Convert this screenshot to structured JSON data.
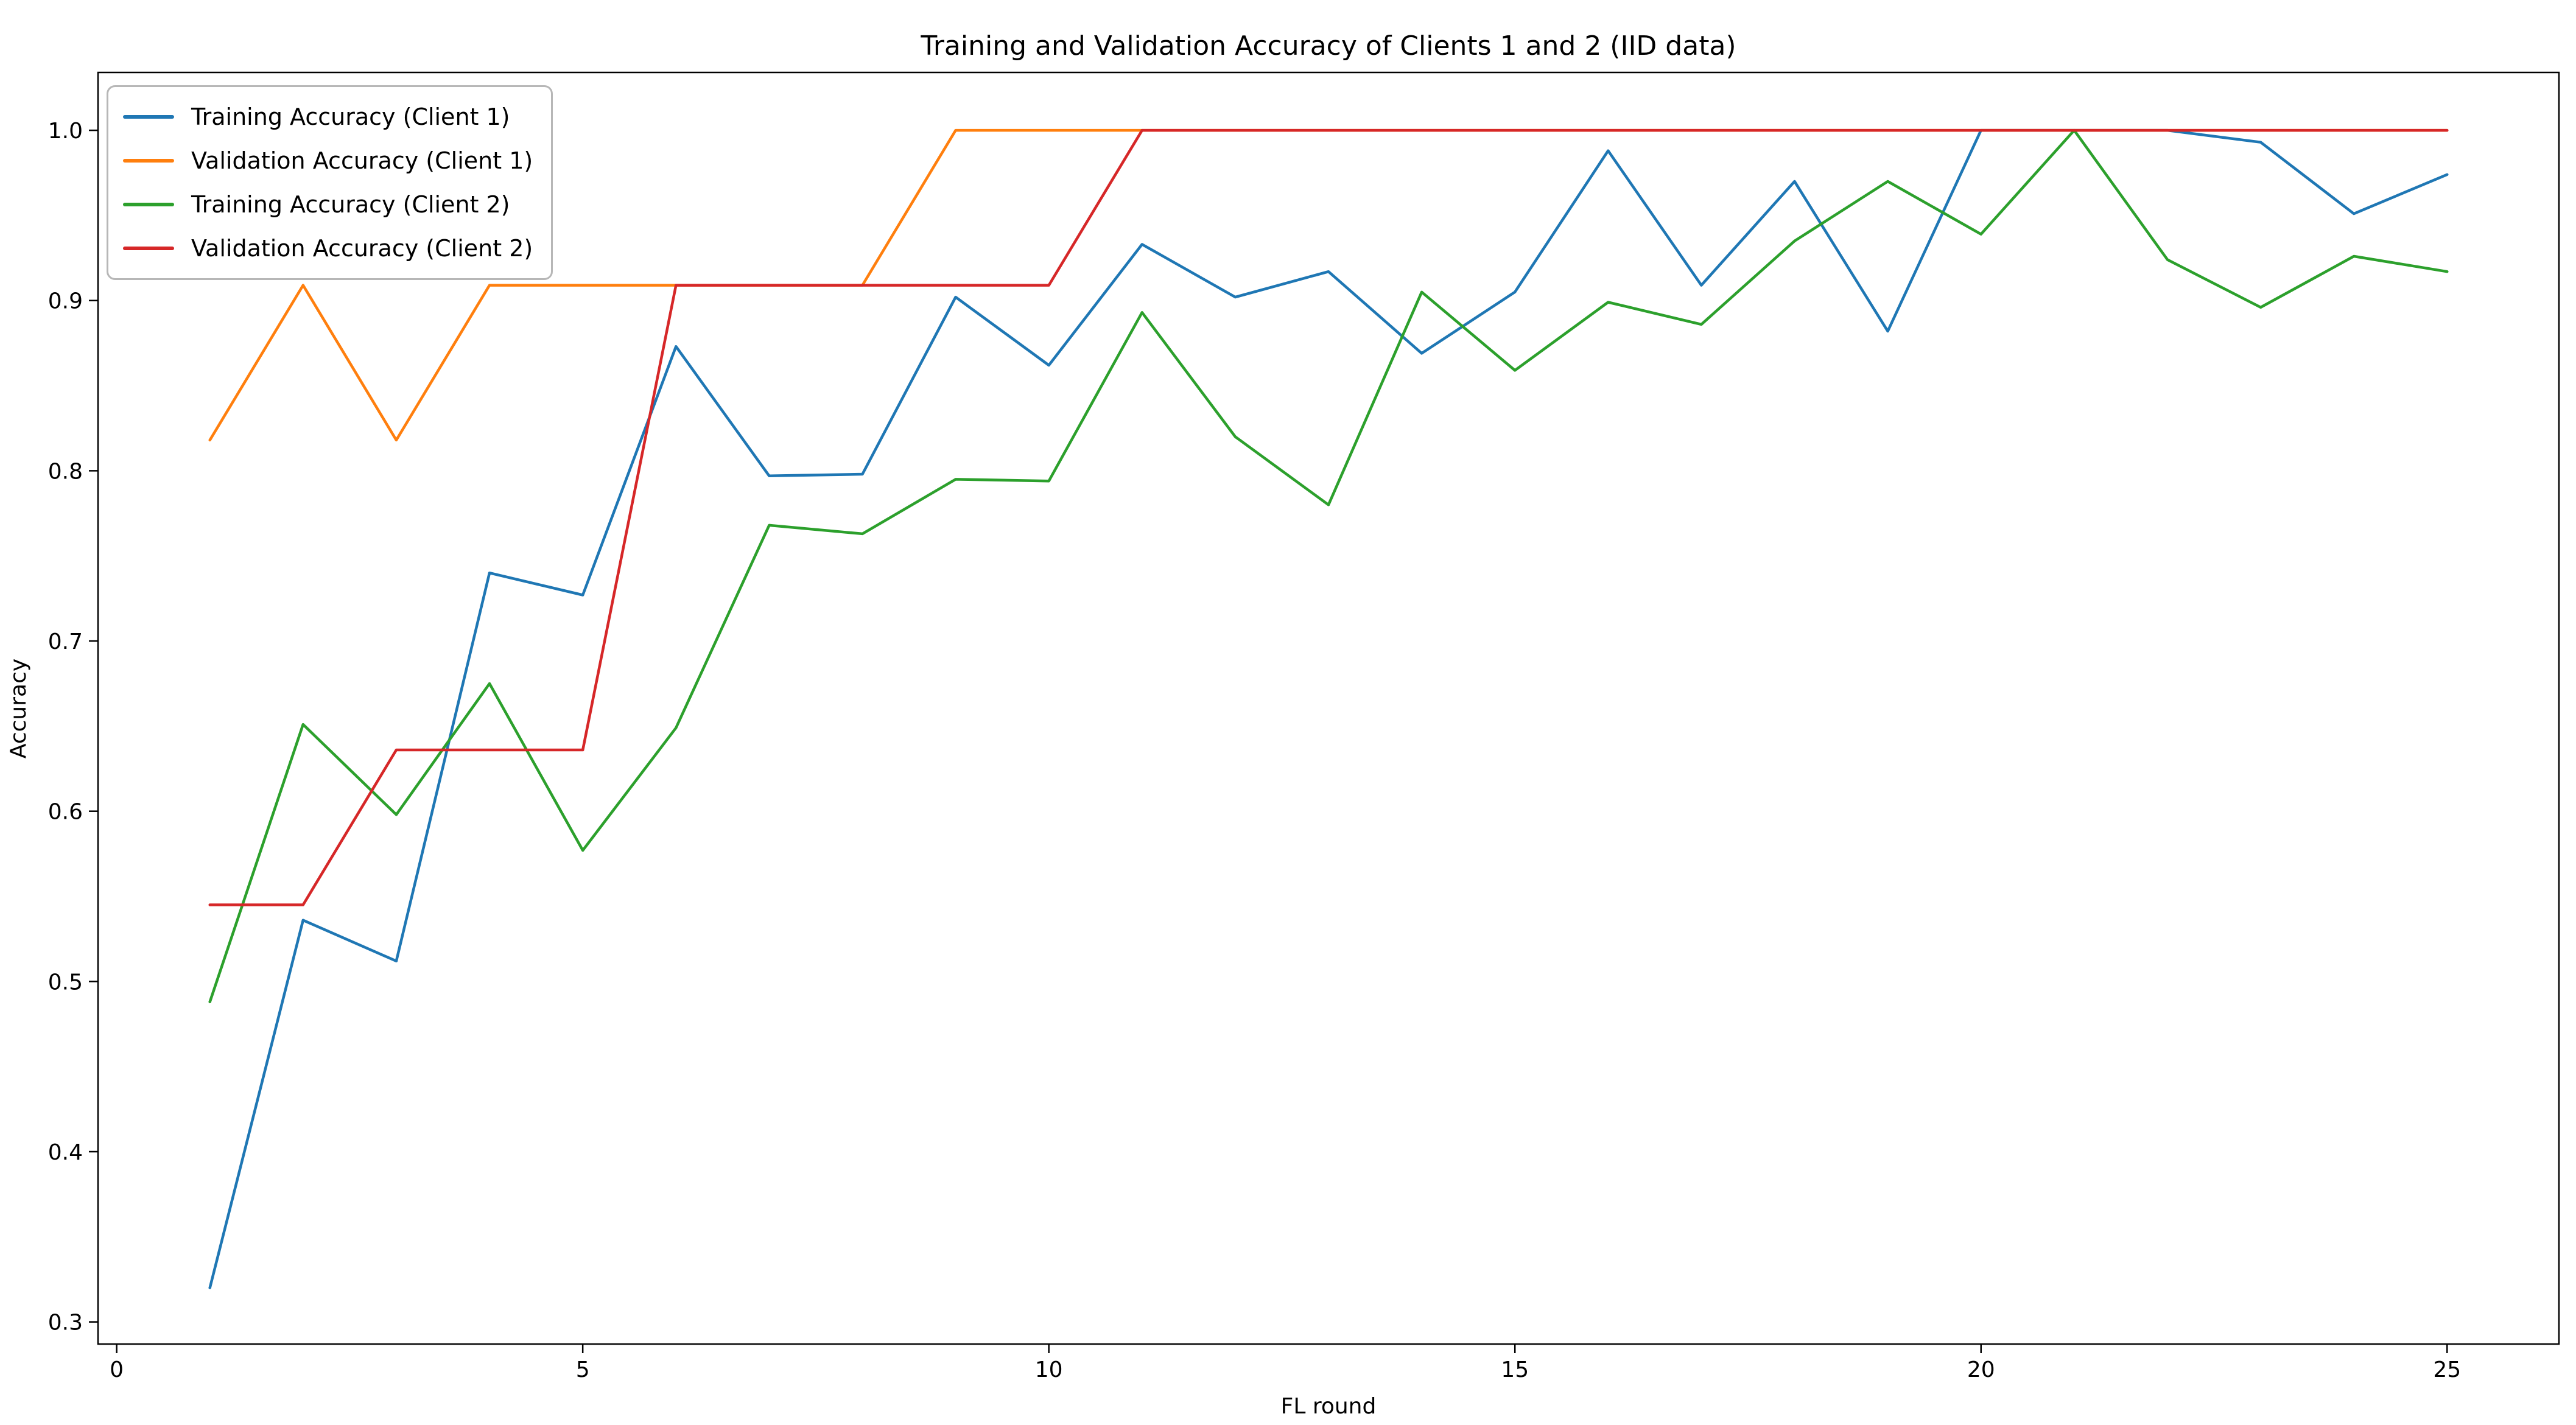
{
  "chart_data": {
    "type": "line",
    "title": "Training and Validation Accuracy of Clients 1 and 2 (IID data)",
    "xlabel": "FL round",
    "ylabel": "Accuracy",
    "x": [
      1,
      2,
      3,
      4,
      5,
      6,
      7,
      8,
      9,
      10,
      11,
      12,
      13,
      14,
      15,
      16,
      17,
      18,
      19,
      20,
      21,
      22,
      23,
      24,
      25
    ],
    "series": [
      {
        "name": "Training Accuracy (Client 1)",
        "color": "#1f77b4",
        "values": [
          0.32,
          0.536,
          0.512,
          0.74,
          0.727,
          0.873,
          0.797,
          0.798,
          0.902,
          0.862,
          0.933,
          0.902,
          0.917,
          0.869,
          0.905,
          0.988,
          0.909,
          0.97,
          0.882,
          1.0,
          1.0,
          1.0,
          0.993,
          0.951,
          0.974
        ]
      },
      {
        "name": "Validation Accuracy (Client 1)",
        "color": "#ff7f0e",
        "values": [
          0.818,
          0.909,
          0.818,
          0.909,
          0.909,
          0.909,
          0.909,
          0.909,
          1.0,
          1.0,
          1.0,
          1.0,
          1.0,
          1.0,
          1.0,
          1.0,
          1.0,
          1.0,
          1.0,
          1.0,
          1.0,
          1.0,
          1.0,
          1.0,
          1.0
        ]
      },
      {
        "name": "Training Accuracy (Client 2)",
        "color": "#2ca02c",
        "values": [
          0.488,
          0.651,
          0.598,
          0.675,
          0.577,
          0.649,
          0.768,
          0.763,
          0.795,
          0.794,
          0.893,
          0.82,
          0.78,
          0.905,
          0.859,
          0.899,
          0.886,
          0.935,
          0.97,
          0.939,
          1.0,
          0.924,
          0.896,
          0.926,
          0.917
        ]
      },
      {
        "name": "Validation Accuracy (Client 2)",
        "color": "#d62728",
        "values": [
          0.545,
          0.545,
          0.636,
          0.636,
          0.636,
          0.909,
          0.909,
          0.909,
          0.909,
          0.909,
          1.0,
          1.0,
          1.0,
          1.0,
          1.0,
          1.0,
          1.0,
          1.0,
          1.0,
          1.0,
          1.0,
          1.0,
          1.0,
          1.0,
          1.0
        ]
      }
    ],
    "xlim": [
      -0.2,
      26.2
    ],
    "ylim": [
      0.287,
      1.034
    ],
    "x_ticks": [
      0,
      5,
      10,
      15,
      20,
      25
    ],
    "x_tick_labels": [
      "0",
      "5",
      "10",
      "15",
      "20",
      "25"
    ],
    "y_ticks": [
      0.3,
      0.4,
      0.5,
      0.6,
      0.7,
      0.8,
      0.9,
      1.0
    ],
    "y_tick_labels": [
      "0.3",
      "0.4",
      "0.5",
      "0.6",
      "0.7",
      "0.8",
      "0.9",
      "1.0"
    ],
    "grid": false,
    "legend_position": "upper-left"
  }
}
